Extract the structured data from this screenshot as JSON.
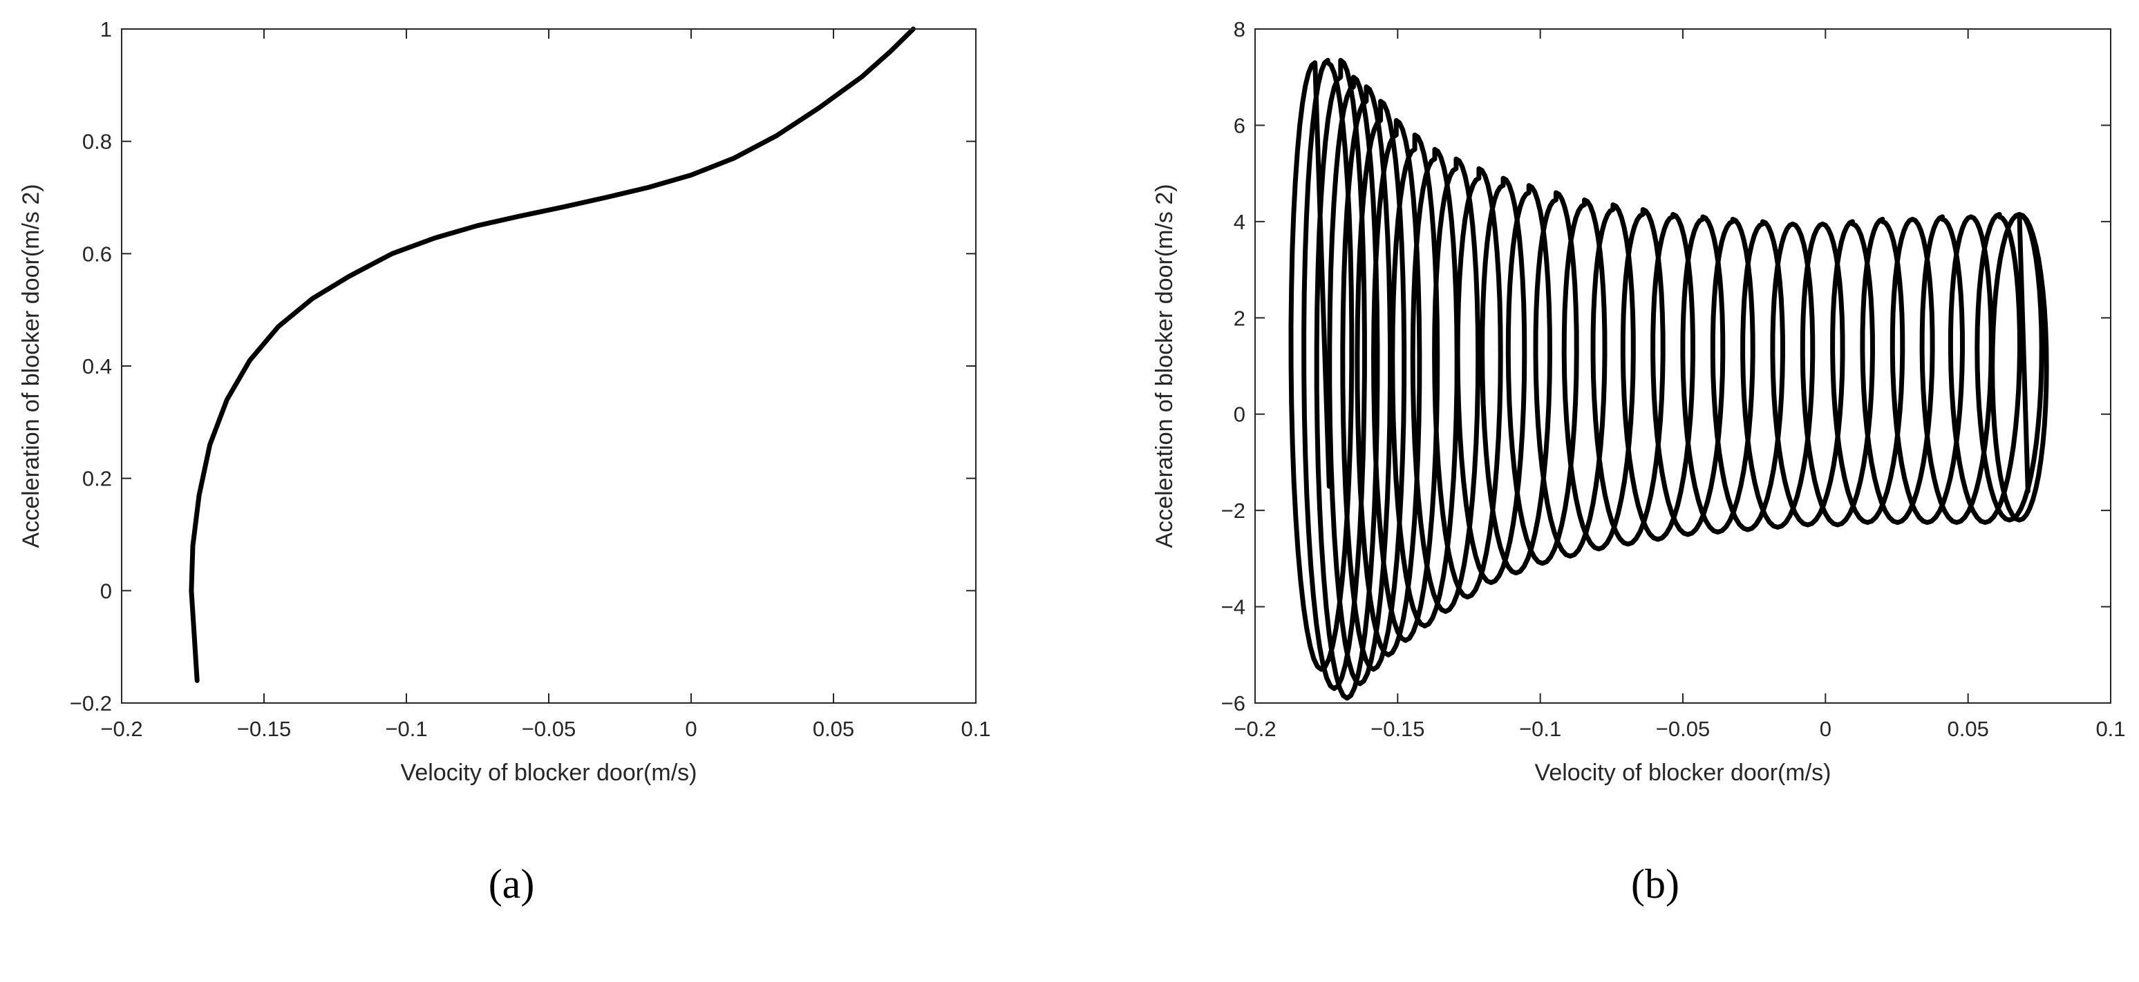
{
  "chart_data": [
    {
      "type": "line",
      "panel_label": "(a)",
      "xlabel": "Velocity of blocker door(m/s)",
      "ylabel": "Acceleration of blocker door(m/s 2)",
      "xlim": [
        -0.2,
        0.1
      ],
      "ylim": [
        -0.2,
        1
      ],
      "xticks": [
        -0.2,
        -0.15,
        -0.1,
        -0.05,
        0,
        0.05,
        0.1
      ],
      "xtick_labels": [
        "−0.2",
        "−0.15",
        "−0.1",
        "−0.05",
        "0",
        "0.05",
        "0.1"
      ],
      "yticks": [
        -0.2,
        0,
        0.2,
        0.4,
        0.6,
        0.8,
        1
      ],
      "ytick_labels": [
        "−0.2",
        "0",
        "0.2",
        "0.4",
        "0.6",
        "0.8",
        "1"
      ],
      "grid": false,
      "color": "#000000",
      "series": [
        {
          "x": [
            -0.1735,
            -0.1745,
            -0.1755,
            -0.175,
            -0.1728,
            -0.169,
            -0.163,
            -0.155,
            -0.145,
            -0.133,
            -0.12,
            -0.105,
            -0.09,
            -0.075,
            -0.06,
            -0.045,
            -0.03,
            -0.015,
            0.0,
            0.015,
            0.03,
            0.045,
            0.06,
            0.07,
            0.078
          ],
          "y": [
            -0.16,
            -0.08,
            0.0,
            0.08,
            0.17,
            0.26,
            0.34,
            0.41,
            0.47,
            0.52,
            0.56,
            0.6,
            0.628,
            0.65,
            0.667,
            0.683,
            0.7,
            0.718,
            0.74,
            0.77,
            0.81,
            0.86,
            0.915,
            0.96,
            1.0
          ]
        }
      ]
    },
    {
      "type": "line",
      "panel_label": "(b)",
      "xlabel": "Velocity of blocker door(m/s)",
      "ylabel": "Acceleration of blocker door(m/s 2)",
      "xlim": [
        -0.2,
        0.1
      ],
      "ylim": [
        -6,
        8
      ],
      "xticks": [
        -0.2,
        -0.15,
        -0.1,
        -0.05,
        0,
        0.05,
        0.1
      ],
      "xtick_labels": [
        "−0.2",
        "−0.15",
        "−0.1",
        "−0.05",
        "0",
        "0.05",
        "0.1"
      ],
      "yticks": [
        -6,
        -4,
        -2,
        0,
        2,
        4,
        6,
        8
      ],
      "ytick_labels": [
        "−6",
        "−4",
        "−2",
        "0",
        "2",
        "4",
        "6",
        "8"
      ],
      "grid": false,
      "color": "#000000",
      "series": [
        {
          "description_note": "",
          "start": {
            "x": -0.174,
            "y": -1.5
          },
          "end": {
            "x": 0.071,
            "y": -1.6
          },
          "loops": [
            {
              "cx": -0.179,
              "ytop": 7.3,
              "ybot": -5.3
            },
            {
              "cx": -0.1745,
              "ytop": 7.35,
              "ybot": -5.7
            },
            {
              "cx": -0.17,
              "ytop": 7.0,
              "ybot": -5.9
            },
            {
              "cx": -0.1655,
              "ytop": 6.8,
              "ybot": -5.6
            },
            {
              "cx": -0.161,
              "ytop": 6.5,
              "ybot": -5.3
            },
            {
              "cx": -0.156,
              "ytop": 6.1,
              "ybot": -5.0
            },
            {
              "cx": -0.1505,
              "ytop": 5.8,
              "ybot": -4.7
            },
            {
              "cx": -0.144,
              "ytop": 5.5,
              "ybot": -4.4
            },
            {
              "cx": -0.137,
              "ytop": 5.3,
              "ybot": -4.1
            },
            {
              "cx": -0.1295,
              "ytop": 5.1,
              "ybot": -3.8
            },
            {
              "cx": -0.1215,
              "ytop": 4.9,
              "ybot": -3.5
            },
            {
              "cx": -0.113,
              "ytop": 4.75,
              "ybot": -3.3
            },
            {
              "cx": -0.104,
              "ytop": 4.6,
              "ybot": -3.1
            },
            {
              "cx": -0.0945,
              "ytop": 4.45,
              "ybot": -2.95
            },
            {
              "cx": -0.0845,
              "ytop": 4.35,
              "ybot": -2.8
            },
            {
              "cx": -0.0745,
              "ytop": 4.25,
              "ybot": -2.7
            },
            {
              "cx": -0.064,
              "ytop": 4.15,
              "ybot": -2.6
            },
            {
              "cx": -0.0535,
              "ytop": 4.1,
              "ybot": -2.5
            },
            {
              "cx": -0.043,
              "ytop": 4.05,
              "ybot": -2.45
            },
            {
              "cx": -0.0325,
              "ytop": 4.0,
              "ybot": -2.4
            },
            {
              "cx": -0.022,
              "ytop": 3.95,
              "ybot": -2.35
            },
            {
              "cx": -0.0115,
              "ytop": 3.95,
              "ybot": -2.3
            },
            {
              "cx": -0.001,
              "ytop": 3.95,
              "ybot": -2.3
            },
            {
              "cx": 0.0095,
              "ytop": 4.0,
              "ybot": -2.25
            },
            {
              "cx": 0.02,
              "ytop": 4.05,
              "ybot": -2.25
            },
            {
              "cx": 0.0305,
              "ytop": 4.05,
              "ybot": -2.25
            },
            {
              "cx": 0.041,
              "ytop": 4.1,
              "ybot": -2.25
            },
            {
              "cx": 0.051,
              "ytop": 4.1,
              "ybot": -2.25
            },
            {
              "cx": 0.061,
              "ytop": 4.15,
              "ybot": -2.2
            },
            {
              "cx": 0.068,
              "ytop": 4.15,
              "ybot": -2.2
            }
          ],
          "loop_halfwidth": 0.0095
        }
      ]
    }
  ]
}
